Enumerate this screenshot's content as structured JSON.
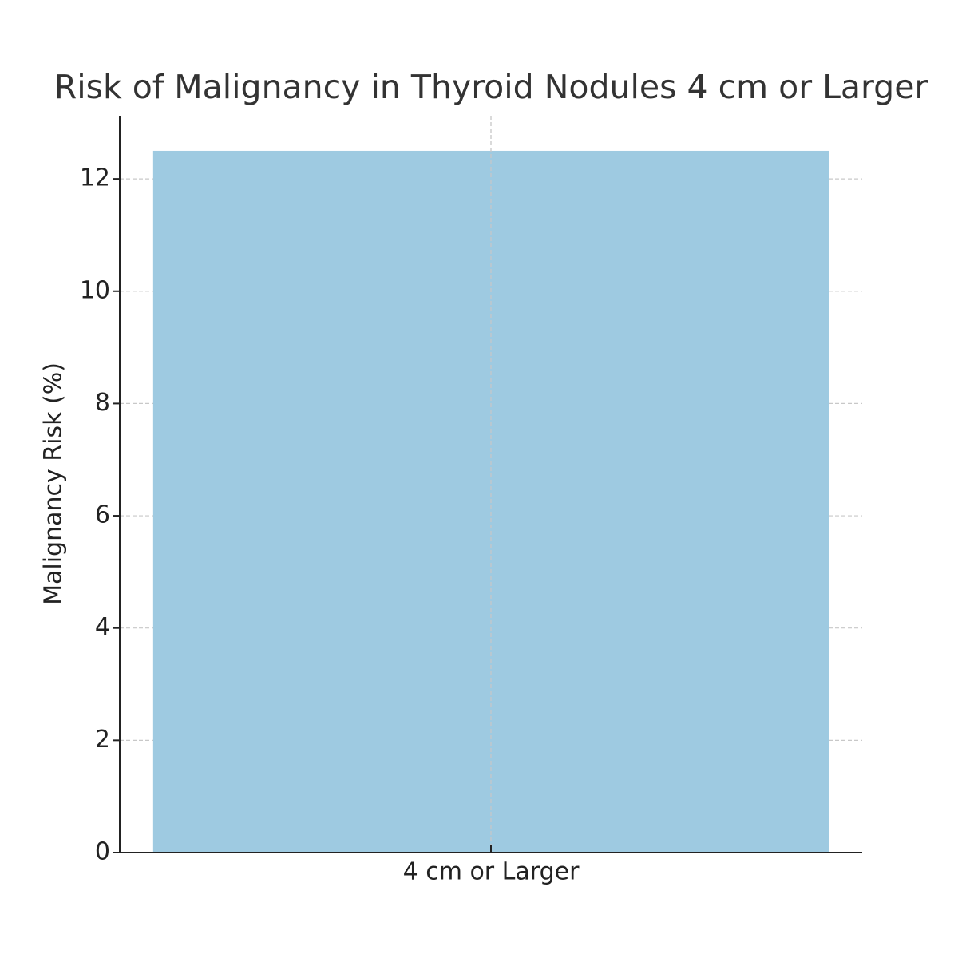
{
  "chart_data": {
    "type": "bar",
    "title": "Risk of Malignancy in Thyroid Nodules 4 cm or Larger",
    "ylabel": "Malignancy Risk (%)",
    "categories": [
      "4 cm or Larger"
    ],
    "values": [
      12.5
    ],
    "color": "#9ecae1",
    "ylim": [
      0,
      13.125
    ],
    "yticks": [
      0,
      2,
      4,
      6,
      8,
      10,
      12
    ],
    "grid": true
  }
}
